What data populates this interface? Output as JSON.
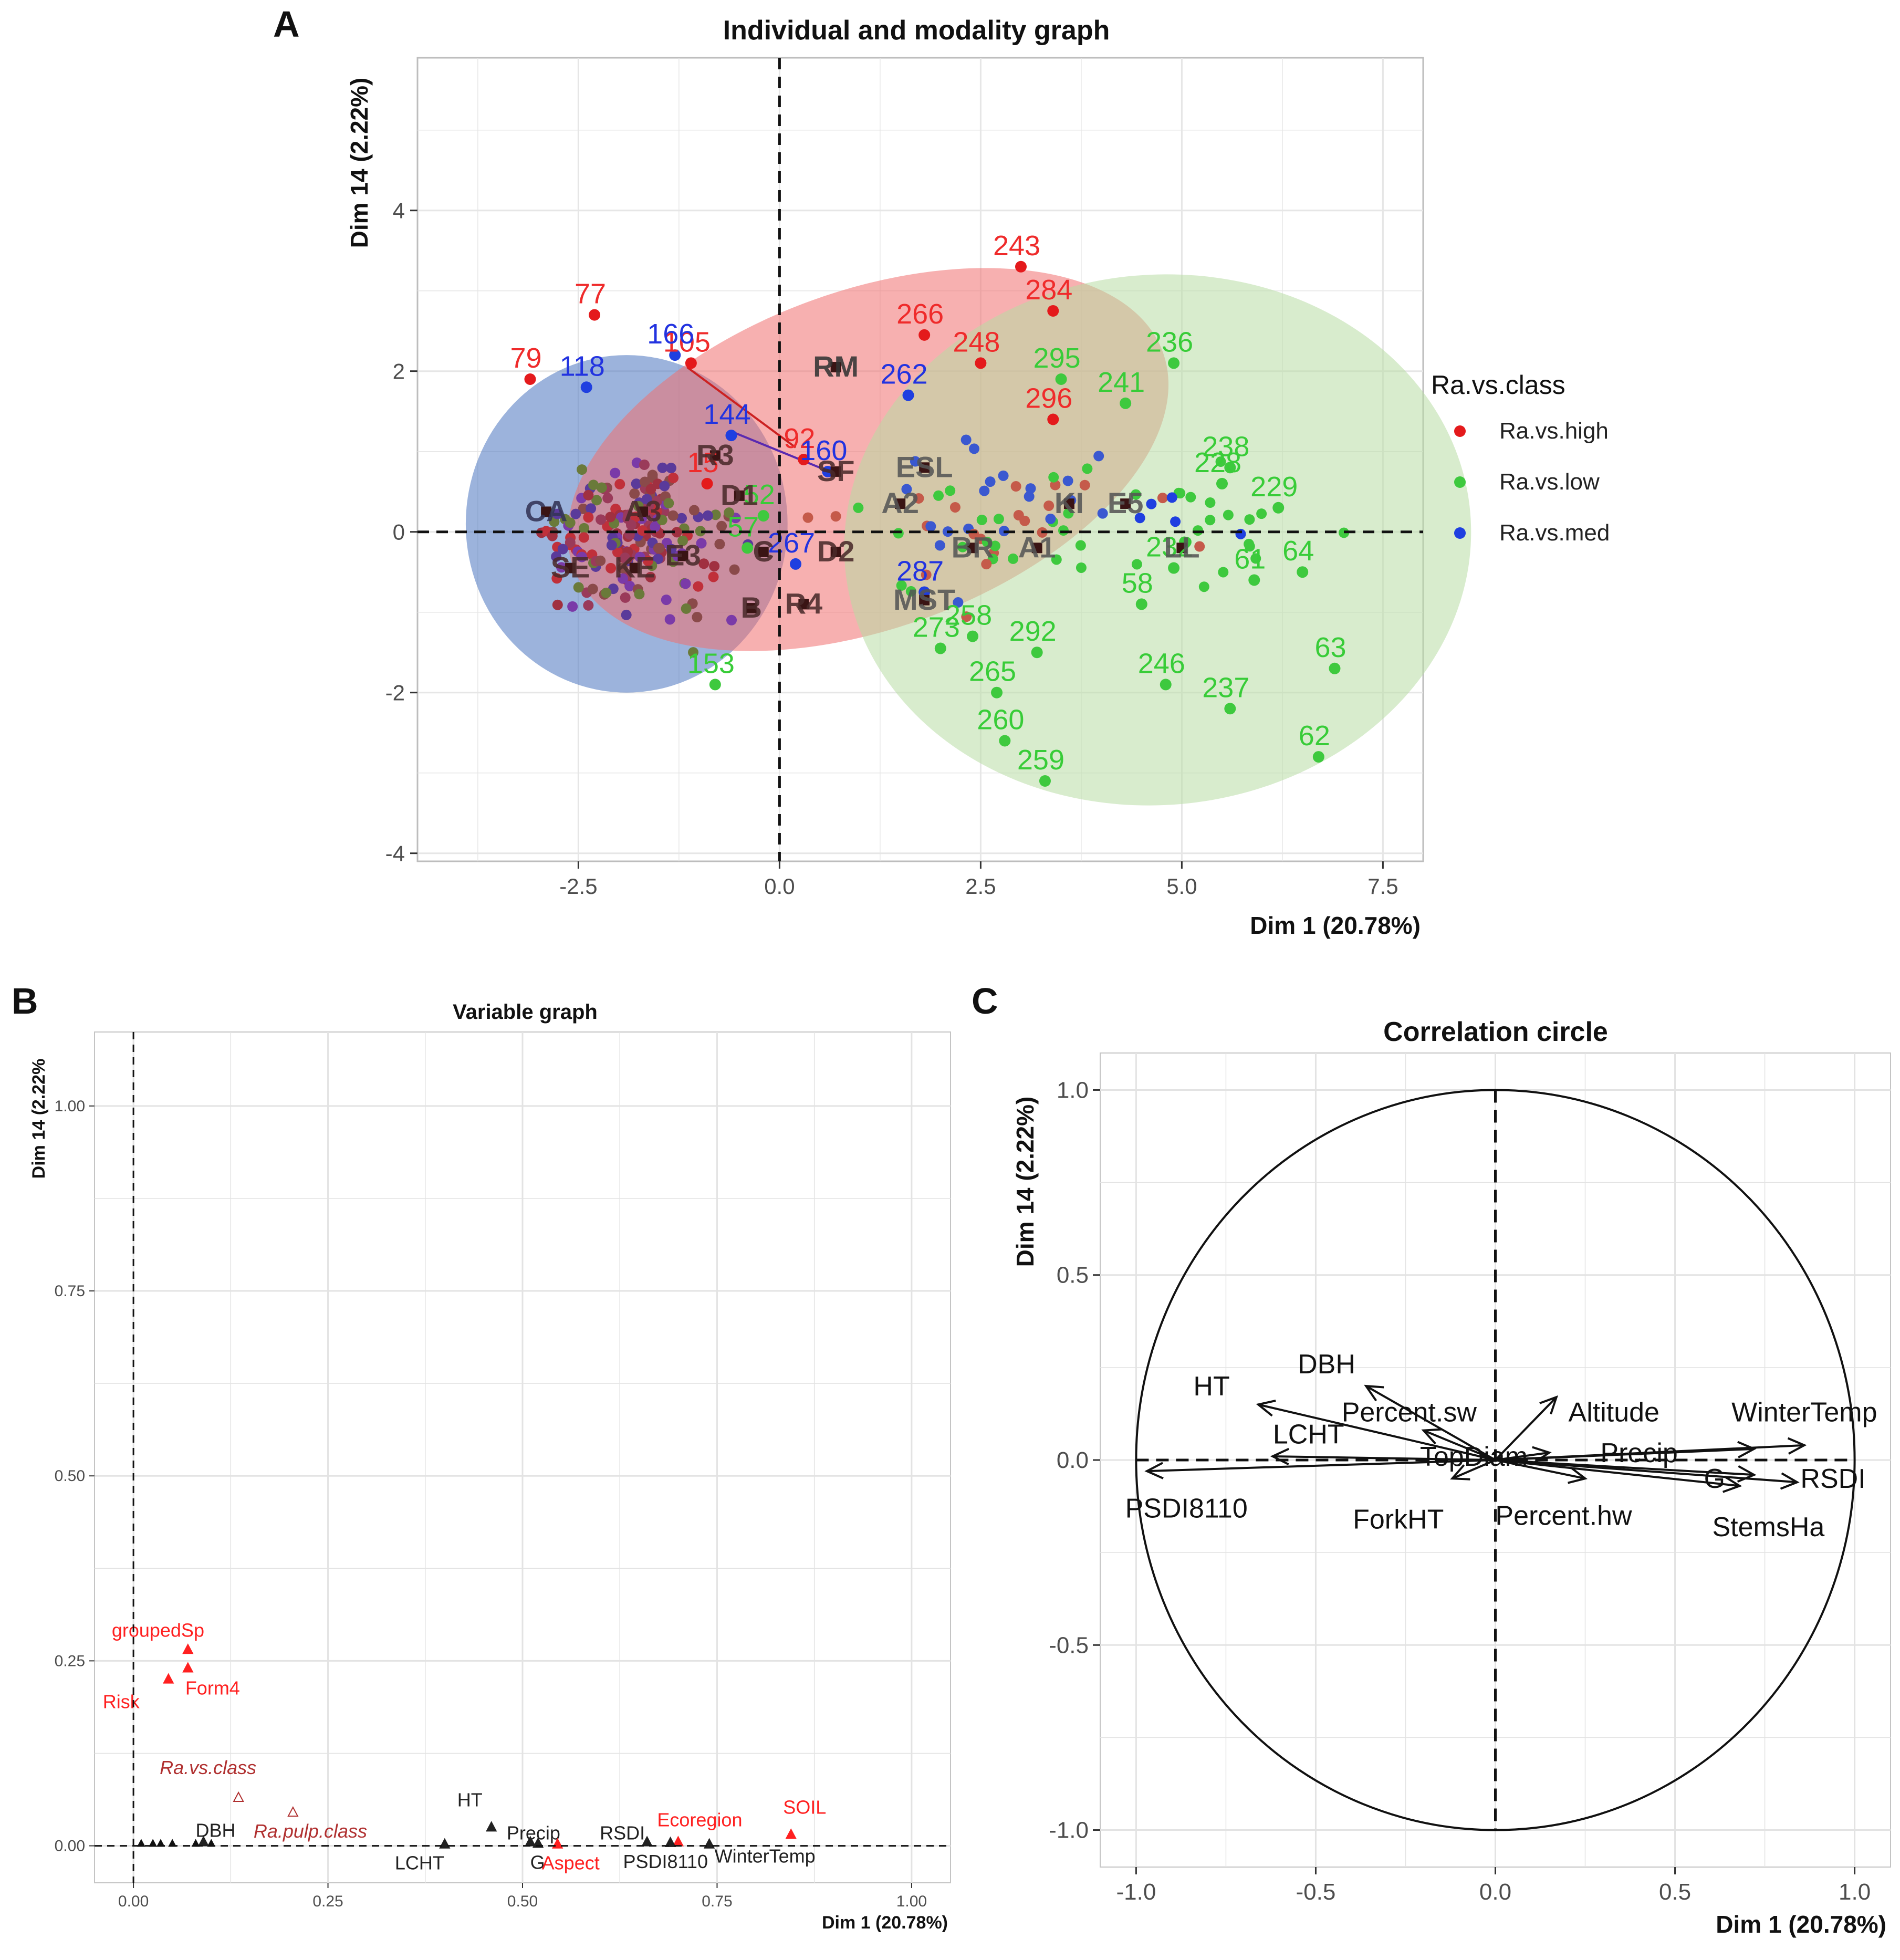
{
  "panel_labels": {
    "a": "A",
    "b": "B",
    "c": "C"
  },
  "chart_data": [
    {
      "type": "scatter",
      "title": "Individual and modality graph",
      "xlabel": "Dim 1 (20.78%)",
      "ylabel": "Dim 14 (2.22%)",
      "xlim": [
        -4.5,
        8.0
      ],
      "ylim": [
        -4.1,
        5.9
      ],
      "xticks": [
        -2.5,
        0.0,
        2.5,
        5.0,
        7.5
      ],
      "xtick_labels": [
        "-2.5",
        "0.0",
        "2.5",
        "5.0",
        "7.5"
      ],
      "yticks": [
        -4,
        -2,
        0,
        2,
        4
      ],
      "ytick_labels": [
        "-4",
        "-2",
        "0",
        "2",
        "4"
      ],
      "grid": true,
      "legend": {
        "title": "Ra.vs.class",
        "position": "right",
        "items": [
          {
            "label": "Ra.vs.high",
            "color": "#e41a1c"
          },
          {
            "label": "Ra.vs.low",
            "color": "#3ec93e"
          },
          {
            "label": "Ra.vs.med",
            "color": "#1f3fe0"
          }
        ]
      },
      "ellipses": [
        {
          "group": "Ra.vs.med",
          "cx": -1.9,
          "cy": 0.1,
          "rx": 2.0,
          "ry": 2.1,
          "angle_deg": 0,
          "color": "#4a74c0"
        },
        {
          "group": "Ra.vs.high",
          "cx": 1.1,
          "cy": 0.9,
          "rx": 3.9,
          "ry": 2.1,
          "angle_deg": 20,
          "color": "#f07070"
        },
        {
          "group": "Ra.vs.low",
          "cx": 4.7,
          "cy": -0.1,
          "rx": 3.9,
          "ry": 3.3,
          "angle_deg": 5,
          "color": "#b8dca4"
        }
      ],
      "labeled_points": [
        {
          "label": "77",
          "x": -2.3,
          "y": 2.7,
          "group": "high"
        },
        {
          "label": "79",
          "x": -3.1,
          "y": 1.9,
          "group": "high"
        },
        {
          "label": "105",
          "x": -1.1,
          "y": 2.1,
          "group": "high"
        },
        {
          "label": "166",
          "x": -1.3,
          "y": 2.2,
          "group": "med"
        },
        {
          "label": "118",
          "x": -2.4,
          "y": 1.8,
          "group": "med"
        },
        {
          "label": "144",
          "x": -0.6,
          "y": 1.2,
          "group": "med"
        },
        {
          "label": "92",
          "x": 0.3,
          "y": 0.9,
          "group": "high"
        },
        {
          "label": "15",
          "x": -0.9,
          "y": 0.6,
          "group": "high"
        },
        {
          "label": "160",
          "x": 0.6,
          "y": 0.75,
          "group": "med"
        },
        {
          "label": "52",
          "x": -0.2,
          "y": 0.2,
          "group": "low"
        },
        {
          "label": "57",
          "x": -0.4,
          "y": -0.2,
          "group": "low"
        },
        {
          "label": "267",
          "x": 0.2,
          "y": -0.4,
          "group": "med"
        },
        {
          "label": "287",
          "x": 1.8,
          "y": -0.75,
          "group": "med"
        },
        {
          "label": "243",
          "x": 3.0,
          "y": 3.3,
          "group": "high"
        },
        {
          "label": "266",
          "x": 1.8,
          "y": 2.45,
          "group": "high"
        },
        {
          "label": "284",
          "x": 3.4,
          "y": 2.75,
          "group": "high"
        },
        {
          "label": "248",
          "x": 2.5,
          "y": 2.1,
          "group": "high"
        },
        {
          "label": "262",
          "x": 1.6,
          "y": 1.7,
          "group": "med"
        },
        {
          "label": "295",
          "x": 3.5,
          "y": 1.9,
          "group": "low"
        },
        {
          "label": "296",
          "x": 3.4,
          "y": 1.4,
          "group": "high"
        },
        {
          "label": "236",
          "x": 4.9,
          "y": 2.1,
          "group": "low"
        },
        {
          "label": "241",
          "x": 4.3,
          "y": 1.6,
          "group": "low"
        },
        {
          "label": "238",
          "x": 5.6,
          "y": 0.8,
          "group": "low"
        },
        {
          "label": "228",
          "x": 5.5,
          "y": 0.6,
          "group": "low"
        },
        {
          "label": "229",
          "x": 6.2,
          "y": 0.3,
          "group": "low"
        },
        {
          "label": "232",
          "x": 4.9,
          "y": -0.45,
          "group": "low"
        },
        {
          "label": "61",
          "x": 5.9,
          "y": -0.6,
          "group": "low"
        },
        {
          "label": "64",
          "x": 6.5,
          "y": -0.5,
          "group": "low"
        },
        {
          "label": "58",
          "x": 4.5,
          "y": -0.9,
          "group": "low"
        },
        {
          "label": "63",
          "x": 6.9,
          "y": -1.7,
          "group": "low"
        },
        {
          "label": "62",
          "x": 6.7,
          "y": -2.8,
          "group": "low"
        },
        {
          "label": "237",
          "x": 5.6,
          "y": -2.2,
          "group": "low"
        },
        {
          "label": "246",
          "x": 4.8,
          "y": -1.9,
          "group": "low"
        },
        {
          "label": "292",
          "x": 3.2,
          "y": -1.5,
          "group": "low"
        },
        {
          "label": "258",
          "x": 2.4,
          "y": -1.3,
          "group": "low"
        },
        {
          "label": "273",
          "x": 2.0,
          "y": -1.45,
          "group": "low"
        },
        {
          "label": "265",
          "x": 2.7,
          "y": -2.0,
          "group": "low"
        },
        {
          "label": "260",
          "x": 2.8,
          "y": -2.6,
          "group": "low"
        },
        {
          "label": "259",
          "x": 3.3,
          "y": -3.1,
          "group": "low"
        },
        {
          "label": "153",
          "x": -0.8,
          "y": -1.9,
          "group": "low"
        }
      ],
      "modality_labels": [
        {
          "label": "RM",
          "x": 0.7,
          "y": 2.05,
          "color": "#333333"
        },
        {
          "label": "R3",
          "x": -0.8,
          "y": 0.95,
          "color": "#4a2a2a"
        },
        {
          "label": "SF",
          "x": 0.7,
          "y": 0.75,
          "color": "#4a2a2a"
        },
        {
          "label": "ESL",
          "x": 1.8,
          "y": 0.8,
          "color": "#555555"
        },
        {
          "label": "D1",
          "x": -0.5,
          "y": 0.45,
          "color": "#4a2a2a"
        },
        {
          "label": "A2",
          "x": 1.5,
          "y": 0.35,
          "color": "#555555"
        },
        {
          "label": "KI",
          "x": 3.6,
          "y": 0.35,
          "color": "#555555"
        },
        {
          "label": "E5",
          "x": 4.3,
          "y": 0.35,
          "color": "#555555"
        },
        {
          "label": "CA",
          "x": -2.9,
          "y": 0.25,
          "color": "#333355"
        },
        {
          "label": "A3",
          "x": -1.7,
          "y": 0.25,
          "color": "#4a2a2a"
        },
        {
          "label": "C",
          "x": -0.2,
          "y": -0.25,
          "color": "#4a2a2a"
        },
        {
          "label": "D2",
          "x": 0.7,
          "y": -0.25,
          "color": "#4a2a2a"
        },
        {
          "label": "E3",
          "x": -1.2,
          "y": -0.3,
          "color": "#4a2a2a"
        },
        {
          "label": "BR",
          "x": 2.4,
          "y": -0.2,
          "color": "#555555"
        },
        {
          "label": "A1",
          "x": 3.2,
          "y": -0.2,
          "color": "#555555"
        },
        {
          "label": "LL",
          "x": 5.0,
          "y": -0.2,
          "color": "#555555"
        },
        {
          "label": "SE",
          "x": -2.6,
          "y": -0.45,
          "color": "#4a2a2a"
        },
        {
          "label": "KE",
          "x": -1.8,
          "y": -0.45,
          "color": "#4a2a2a"
        },
        {
          "label": "R4",
          "x": 0.3,
          "y": -0.9,
          "color": "#4a2a2a"
        },
        {
          "label": "B",
          "x": -0.35,
          "y": -0.95,
          "color": "#4a2a2a"
        },
        {
          "label": "MST",
          "x": 1.8,
          "y": -0.85,
          "color": "#555555"
        }
      ]
    },
    {
      "type": "scatter",
      "title": "Variable graph",
      "xlabel": "Dim 1 (20.78%)",
      "ylabel": "Dim 14 (2.22%",
      "xlim": [
        -0.05,
        1.05
      ],
      "ylim": [
        -0.05,
        1.1
      ],
      "xticks": [
        0.0,
        0.25,
        0.5,
        0.75,
        1.0
      ],
      "xtick_labels": [
        "0.00",
        "0.25",
        "0.50",
        "0.75",
        "1.00"
      ],
      "yticks": [
        0.0,
        0.25,
        0.5,
        0.75,
        1.0
      ],
      "ytick_labels": [
        "0.00",
        "0.25",
        "0.50",
        "0.75",
        "1.00"
      ],
      "grid": true,
      "variables": [
        {
          "label": "groupedSp",
          "x": 0.07,
          "y": 0.265,
          "color": "#ff2020",
          "italic": false
        },
        {
          "label": "Form4",
          "x": 0.07,
          "y": 0.24,
          "color": "#ff2020",
          "italic": false
        },
        {
          "label": "Risk",
          "x": 0.045,
          "y": 0.225,
          "color": "#ff2020",
          "italic": false
        },
        {
          "label": "Ra.vs.class",
          "x": 0.135,
          "y": 0.065,
          "color": "#b03030",
          "italic": true
        },
        {
          "label": "Ra.pulp.class",
          "x": 0.205,
          "y": 0.045,
          "color": "#b03030",
          "italic": true
        },
        {
          "label": "DBH",
          "x": 0.09,
          "y": 0.005,
          "color": "#222222",
          "italic": false
        },
        {
          "label": "HT",
          "x": 0.46,
          "y": 0.025,
          "color": "#222222",
          "italic": false
        },
        {
          "label": "Precip",
          "x": 0.51,
          "y": 0.005,
          "color": "#222222",
          "italic": false
        },
        {
          "label": "RSDI",
          "x": 0.66,
          "y": 0.005,
          "color": "#222222",
          "italic": false
        },
        {
          "label": "Ecoregion",
          "x": 0.7,
          "y": 0.005,
          "color": "#ff2020",
          "italic": false
        },
        {
          "label": "SOIL",
          "x": 0.845,
          "y": 0.015,
          "color": "#ff2020",
          "italic": false
        },
        {
          "label": "LCHT",
          "x": 0.4,
          "y": 0.002,
          "color": "#222222",
          "italic": false
        },
        {
          "label": "G",
          "x": 0.52,
          "y": 0.003,
          "color": "#222222",
          "italic": false
        },
        {
          "label": "Aspect",
          "x": 0.545,
          "y": 0.002,
          "color": "#ff2020",
          "italic": false
        },
        {
          "label": "PSDI8110",
          "x": 0.69,
          "y": 0.004,
          "color": "#222222",
          "italic": false
        },
        {
          "label": "WinterTemp",
          "x": 0.74,
          "y": 0.002,
          "color": "#222222",
          "italic": false
        }
      ]
    },
    {
      "type": "correlation_circle",
      "title": "Correlation circle",
      "xlabel": "Dim 1 (20.78%)",
      "ylabel": "Dim 14 (2.22%)",
      "xlim": [
        -1.1,
        1.1
      ],
      "ylim": [
        -1.1,
        1.1
      ],
      "xticks": [
        -1.0,
        -0.5,
        0.0,
        0.5,
        1.0
      ],
      "xtick_labels": [
        "-1.0",
        "-0.5",
        "0.0",
        "0.5",
        "1.0"
      ],
      "yticks": [
        -1.0,
        -0.5,
        0.0,
        0.5,
        1.0
      ],
      "ytick_labels": [
        "-1.0",
        "-0.5",
        "0.0",
        "0.5",
        "1.0"
      ],
      "grid": true,
      "vectors": [
        {
          "label": "HT",
          "x": -0.66,
          "y": 0.15
        },
        {
          "label": "DBH",
          "x": -0.36,
          "y": 0.2
        },
        {
          "label": "LCHT",
          "x": -0.62,
          "y": 0.01
        },
        {
          "label": "Percent.sw",
          "x": -0.2,
          "y": 0.08
        },
        {
          "label": "TopDiam",
          "x": 0.15,
          "y": 0.02
        },
        {
          "label": "Altitude",
          "x": 0.17,
          "y": 0.17
        },
        {
          "label": "WinterTemp",
          "x": 0.86,
          "y": 0.04
        },
        {
          "label": "Precip",
          "x": 0.72,
          "y": 0.03
        },
        {
          "label": "RSDI",
          "x": 0.84,
          "y": -0.06
        },
        {
          "label": "G",
          "x": 0.72,
          "y": -0.04
        },
        {
          "label": "StemsHa",
          "x": 0.68,
          "y": -0.07
        },
        {
          "label": "Percent.hw",
          "x": 0.25,
          "y": -0.05
        },
        {
          "label": "ForkHT",
          "x": -0.12,
          "y": -0.05
        },
        {
          "label": "PSDI8110",
          "x": -0.97,
          "y": -0.03
        }
      ]
    }
  ]
}
